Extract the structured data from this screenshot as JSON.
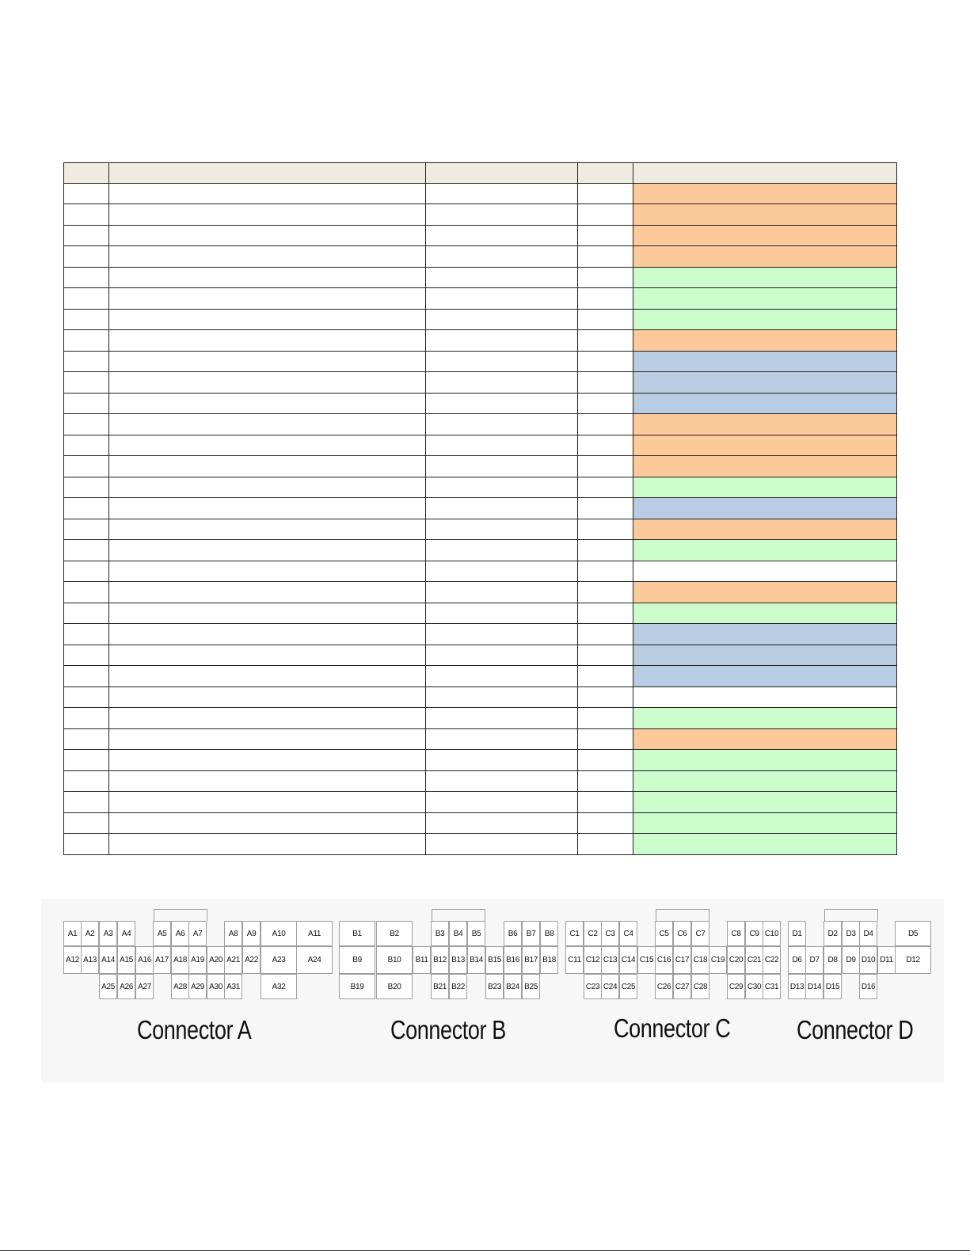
{
  "table": {
    "row_colors": [
      "#fcc99a",
      "#fcc99a",
      "#fcc99a",
      "#fcc99a",
      "#ccfccc",
      "#ccfccc",
      "#ccfccc",
      "#fcc99a",
      "#b8cce4",
      "#b8cce4",
      "#b8cce4",
      "#fcc99a",
      "#fcc99a",
      "#fcc99a",
      "#ccfccc",
      "#b8cce4",
      "#fcc99a",
      "#ccfccc",
      "#ffffff",
      "#fcc99a",
      "#ccfccc",
      "#b8cce4",
      "#b8cce4",
      "#b8cce4",
      "#ffffff",
      "#ccfccc",
      "#fcc99a",
      "#ccfccc",
      "#ccfccc",
      "#ccfccc",
      "#ccfccc",
      "#ccfccc"
    ]
  },
  "connectors": {
    "A": {
      "caption": "Connector A",
      "row1": [
        "A1",
        "A2",
        "A3",
        "A4",
        "A5",
        "A6",
        "A7",
        "A8",
        "A9",
        "A10",
        "A11"
      ],
      "row2": [
        "A12",
        "A13",
        "A14",
        "A15",
        "A16",
        "A17",
        "A18",
        "A19",
        "A20",
        "A21",
        "A22",
        "A23",
        "A24"
      ],
      "row3": [
        "A25",
        "A26",
        "A27",
        "A28",
        "A29",
        "A30",
        "A31",
        "A32"
      ]
    },
    "B": {
      "caption": "Connector B",
      "row1": [
        "B1",
        "B2",
        "B3",
        "B4",
        "B5",
        "B6",
        "B7",
        "B8"
      ],
      "row2": [
        "B9",
        "B10",
        "B11",
        "B12",
        "B13",
        "B14",
        "B15",
        "B16",
        "B17",
        "B18"
      ],
      "row3": [
        "B19",
        "B20",
        "B21",
        "B22",
        "B23",
        "B24",
        "B25"
      ]
    },
    "C": {
      "caption": "Connector C",
      "row1": [
        "C1",
        "C2",
        "C3",
        "C4",
        "C5",
        "C6",
        "C7",
        "C8",
        "C9",
        "C10"
      ],
      "row2": [
        "C11",
        "C12",
        "C13",
        "C14",
        "C15",
        "C16",
        "C17",
        "C18",
        "C19",
        "C20",
        "C21",
        "C22"
      ],
      "row3": [
        "C23",
        "C24",
        "C25",
        "C26",
        "C27",
        "C28",
        "C29",
        "C30",
        "C31"
      ]
    },
    "D": {
      "caption": "Connector D",
      "row1": [
        "D1",
        "D2",
        "D3",
        "D4",
        "D5"
      ],
      "row2": [
        "D6",
        "D7",
        "D8",
        "D9",
        "D10",
        "D11",
        "D12"
      ],
      "row3": [
        "D13",
        "D14",
        "D15",
        "D16"
      ]
    }
  }
}
